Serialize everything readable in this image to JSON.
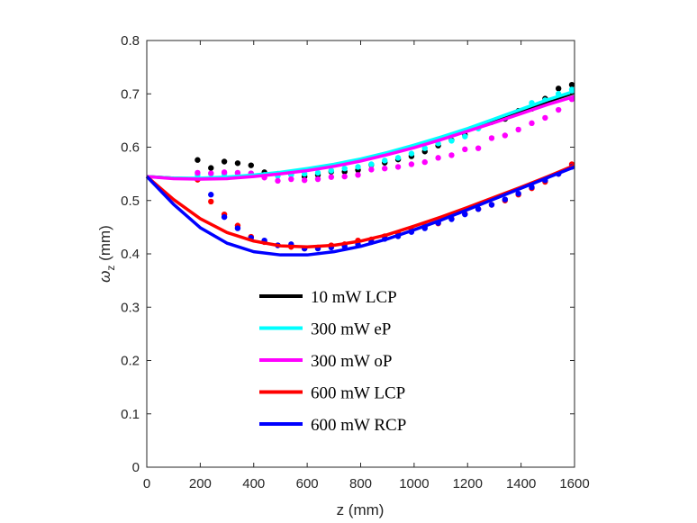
{
  "chart_data": {
    "type": "line",
    "title": "",
    "xlabel": "z (mm)",
    "ylabel": "ω_z (mm)",
    "ylabel_main": "ω",
    "ylabel_sub": "z",
    "ylabel_unit": " (mm)",
    "xlim": [
      0,
      1600
    ],
    "ylim": [
      0,
      0.8
    ],
    "xticks": [
      0,
      200,
      400,
      600,
      800,
      1000,
      1200,
      1400,
      1600
    ],
    "yticks": [
      0,
      0.1,
      0.2,
      0.3,
      0.4,
      0.5,
      0.6,
      0.7,
      0.8
    ],
    "grid": false,
    "legend_position": "center-bottom",
    "fit_z": [
      0,
      100,
      200,
      300,
      400,
      500,
      600,
      700,
      800,
      900,
      1000,
      1100,
      1200,
      1300,
      1400,
      1500,
      1600
    ],
    "dot_z": [
      190,
      240,
      290,
      340,
      390,
      440,
      490,
      540,
      590,
      640,
      690,
      740,
      790,
      840,
      890,
      940,
      990,
      1040,
      1090,
      1140,
      1190,
      1240,
      1290,
      1340,
      1390,
      1440,
      1490,
      1540,
      1590
    ],
    "series": [
      {
        "name": "10 mW LCP",
        "color": "#000000",
        "fit": [
          0.545,
          0.542,
          0.541,
          0.543,
          0.547,
          0.552,
          0.559,
          0.567,
          0.577,
          0.589,
          0.602,
          0.617,
          0.633,
          0.65,
          0.668,
          0.686,
          0.702
        ],
        "points": [
          0.576,
          0.561,
          0.573,
          0.57,
          0.566,
          0.553,
          0.55,
          0.549,
          0.545,
          0.548,
          0.554,
          0.554,
          0.557,
          0.567,
          0.571,
          0.577,
          0.583,
          0.592,
          0.603,
          0.613,
          0.623,
          0.636,
          0.647,
          0.653,
          0.668,
          0.672,
          0.691,
          0.71,
          0.717
        ]
      },
      {
        "name": "300 mW eP",
        "color": "#00ffff",
        "fit": [
          0.545,
          0.542,
          0.542,
          0.544,
          0.548,
          0.553,
          0.56,
          0.568,
          0.578,
          0.59,
          0.604,
          0.619,
          0.635,
          0.653,
          0.671,
          0.689,
          0.705
        ],
        "points": [
          0.548,
          0.55,
          0.55,
          0.551,
          0.55,
          0.548,
          0.546,
          0.548,
          0.55,
          0.552,
          0.556,
          0.56,
          0.563,
          0.568,
          0.575,
          0.58,
          0.588,
          0.598,
          0.607,
          0.612,
          0.62,
          0.635,
          0.648,
          0.655,
          0.665,
          0.683,
          0.688,
          0.7,
          0.708
        ]
      },
      {
        "name": "300 mW oP",
        "color": "#ff00ff",
        "fit": [
          0.545,
          0.541,
          0.54,
          0.541,
          0.545,
          0.55,
          0.556,
          0.564,
          0.574,
          0.586,
          0.599,
          0.614,
          0.63,
          0.646,
          0.663,
          0.68,
          0.695
        ],
        "points": [
          0.552,
          0.551,
          0.553,
          0.552,
          0.551,
          0.543,
          0.537,
          0.54,
          0.538,
          0.54,
          0.544,
          0.545,
          0.548,
          0.558,
          0.56,
          0.563,
          0.568,
          0.572,
          0.58,
          0.585,
          0.596,
          0.598,
          0.617,
          0.622,
          0.633,
          0.645,
          0.655,
          0.67,
          0.69
        ]
      },
      {
        "name": "600 mW LCP",
        "color": "#ff0000",
        "fit": [
          0.545,
          0.502,
          0.466,
          0.44,
          0.424,
          0.415,
          0.413,
          0.416,
          0.424,
          0.436,
          0.452,
          0.469,
          0.487,
          0.506,
          0.525,
          0.545,
          0.566
        ],
        "points": [
          0.539,
          0.498,
          0.474,
          0.453,
          0.432,
          0.422,
          0.416,
          0.413,
          0.41,
          0.412,
          0.416,
          0.418,
          0.425,
          0.427,
          0.433,
          0.438,
          0.445,
          0.452,
          0.457,
          0.466,
          0.475,
          0.484,
          0.492,
          0.5,
          0.511,
          0.523,
          0.535,
          0.55,
          0.568
        ]
      },
      {
        "name": "600 mW RCP",
        "color": "#0000ff",
        "fit": [
          0.545,
          0.493,
          0.449,
          0.42,
          0.404,
          0.398,
          0.398,
          0.404,
          0.414,
          0.428,
          0.445,
          0.463,
          0.483,
          0.503,
          0.523,
          0.543,
          0.563
        ],
        "points": [
          null,
          0.511,
          0.469,
          0.448,
          0.43,
          0.425,
          0.416,
          0.418,
          0.41,
          0.41,
          0.412,
          0.414,
          0.418,
          0.422,
          0.428,
          0.433,
          0.441,
          0.448,
          0.458,
          0.465,
          0.474,
          0.484,
          0.492,
          0.502,
          0.513,
          0.525,
          0.538,
          0.55,
          0.563
        ]
      }
    ]
  }
}
